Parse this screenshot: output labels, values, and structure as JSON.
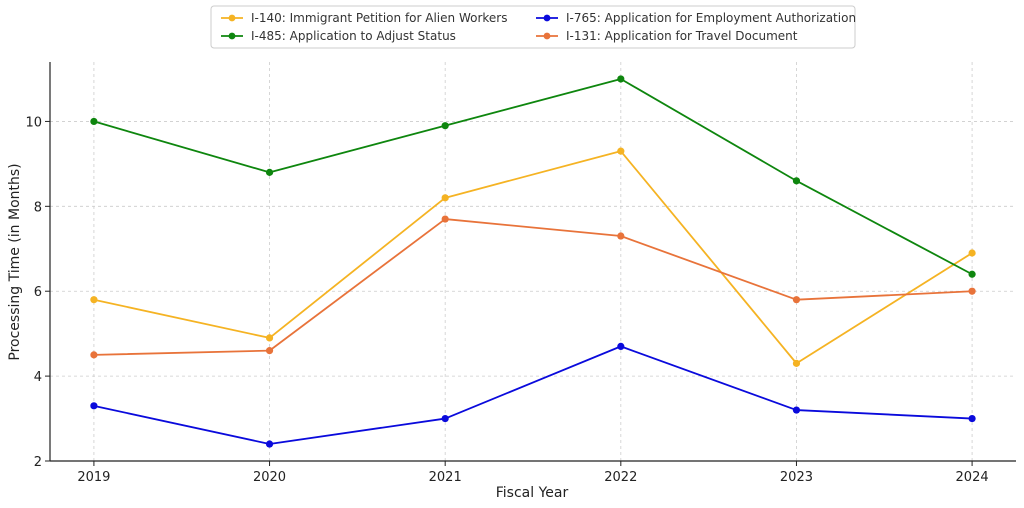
{
  "chart_data": {
    "type": "line",
    "title": "",
    "xlabel": "Fiscal Year",
    "ylabel": "Processing Time (in Months)",
    "x": [
      2019,
      2020,
      2021,
      2022,
      2023,
      2024
    ],
    "x_tick_labels": [
      "2019",
      "2020",
      "2021",
      "2022",
      "2023",
      "2024"
    ],
    "ylim": [
      2,
      11.4
    ],
    "y_ticks": [
      2,
      4,
      6,
      8,
      10
    ],
    "grid": true,
    "legend_placement": "top-center",
    "series": [
      {
        "name": "I-140: Immigrant Petition for Alien Workers",
        "color": "#f5b323",
        "values": [
          5.8,
          4.9,
          8.2,
          9.3,
          4.3,
          6.9
        ]
      },
      {
        "name": "I-765: Application for Employment Authorization",
        "color": "#0a0adc",
        "values": [
          3.3,
          2.4,
          3.0,
          4.7,
          3.2,
          3.0
        ]
      },
      {
        "name": "I-485: Application to Adjust Status",
        "color": "#0e860e",
        "values": [
          10.0,
          8.8,
          9.9,
          11.0,
          8.6,
          6.4
        ]
      },
      {
        "name": "I-131: Application for Travel Document",
        "color": "#e8733a",
        "values": [
          4.5,
          4.6,
          7.7,
          7.3,
          5.8,
          6.0
        ]
      }
    ]
  }
}
